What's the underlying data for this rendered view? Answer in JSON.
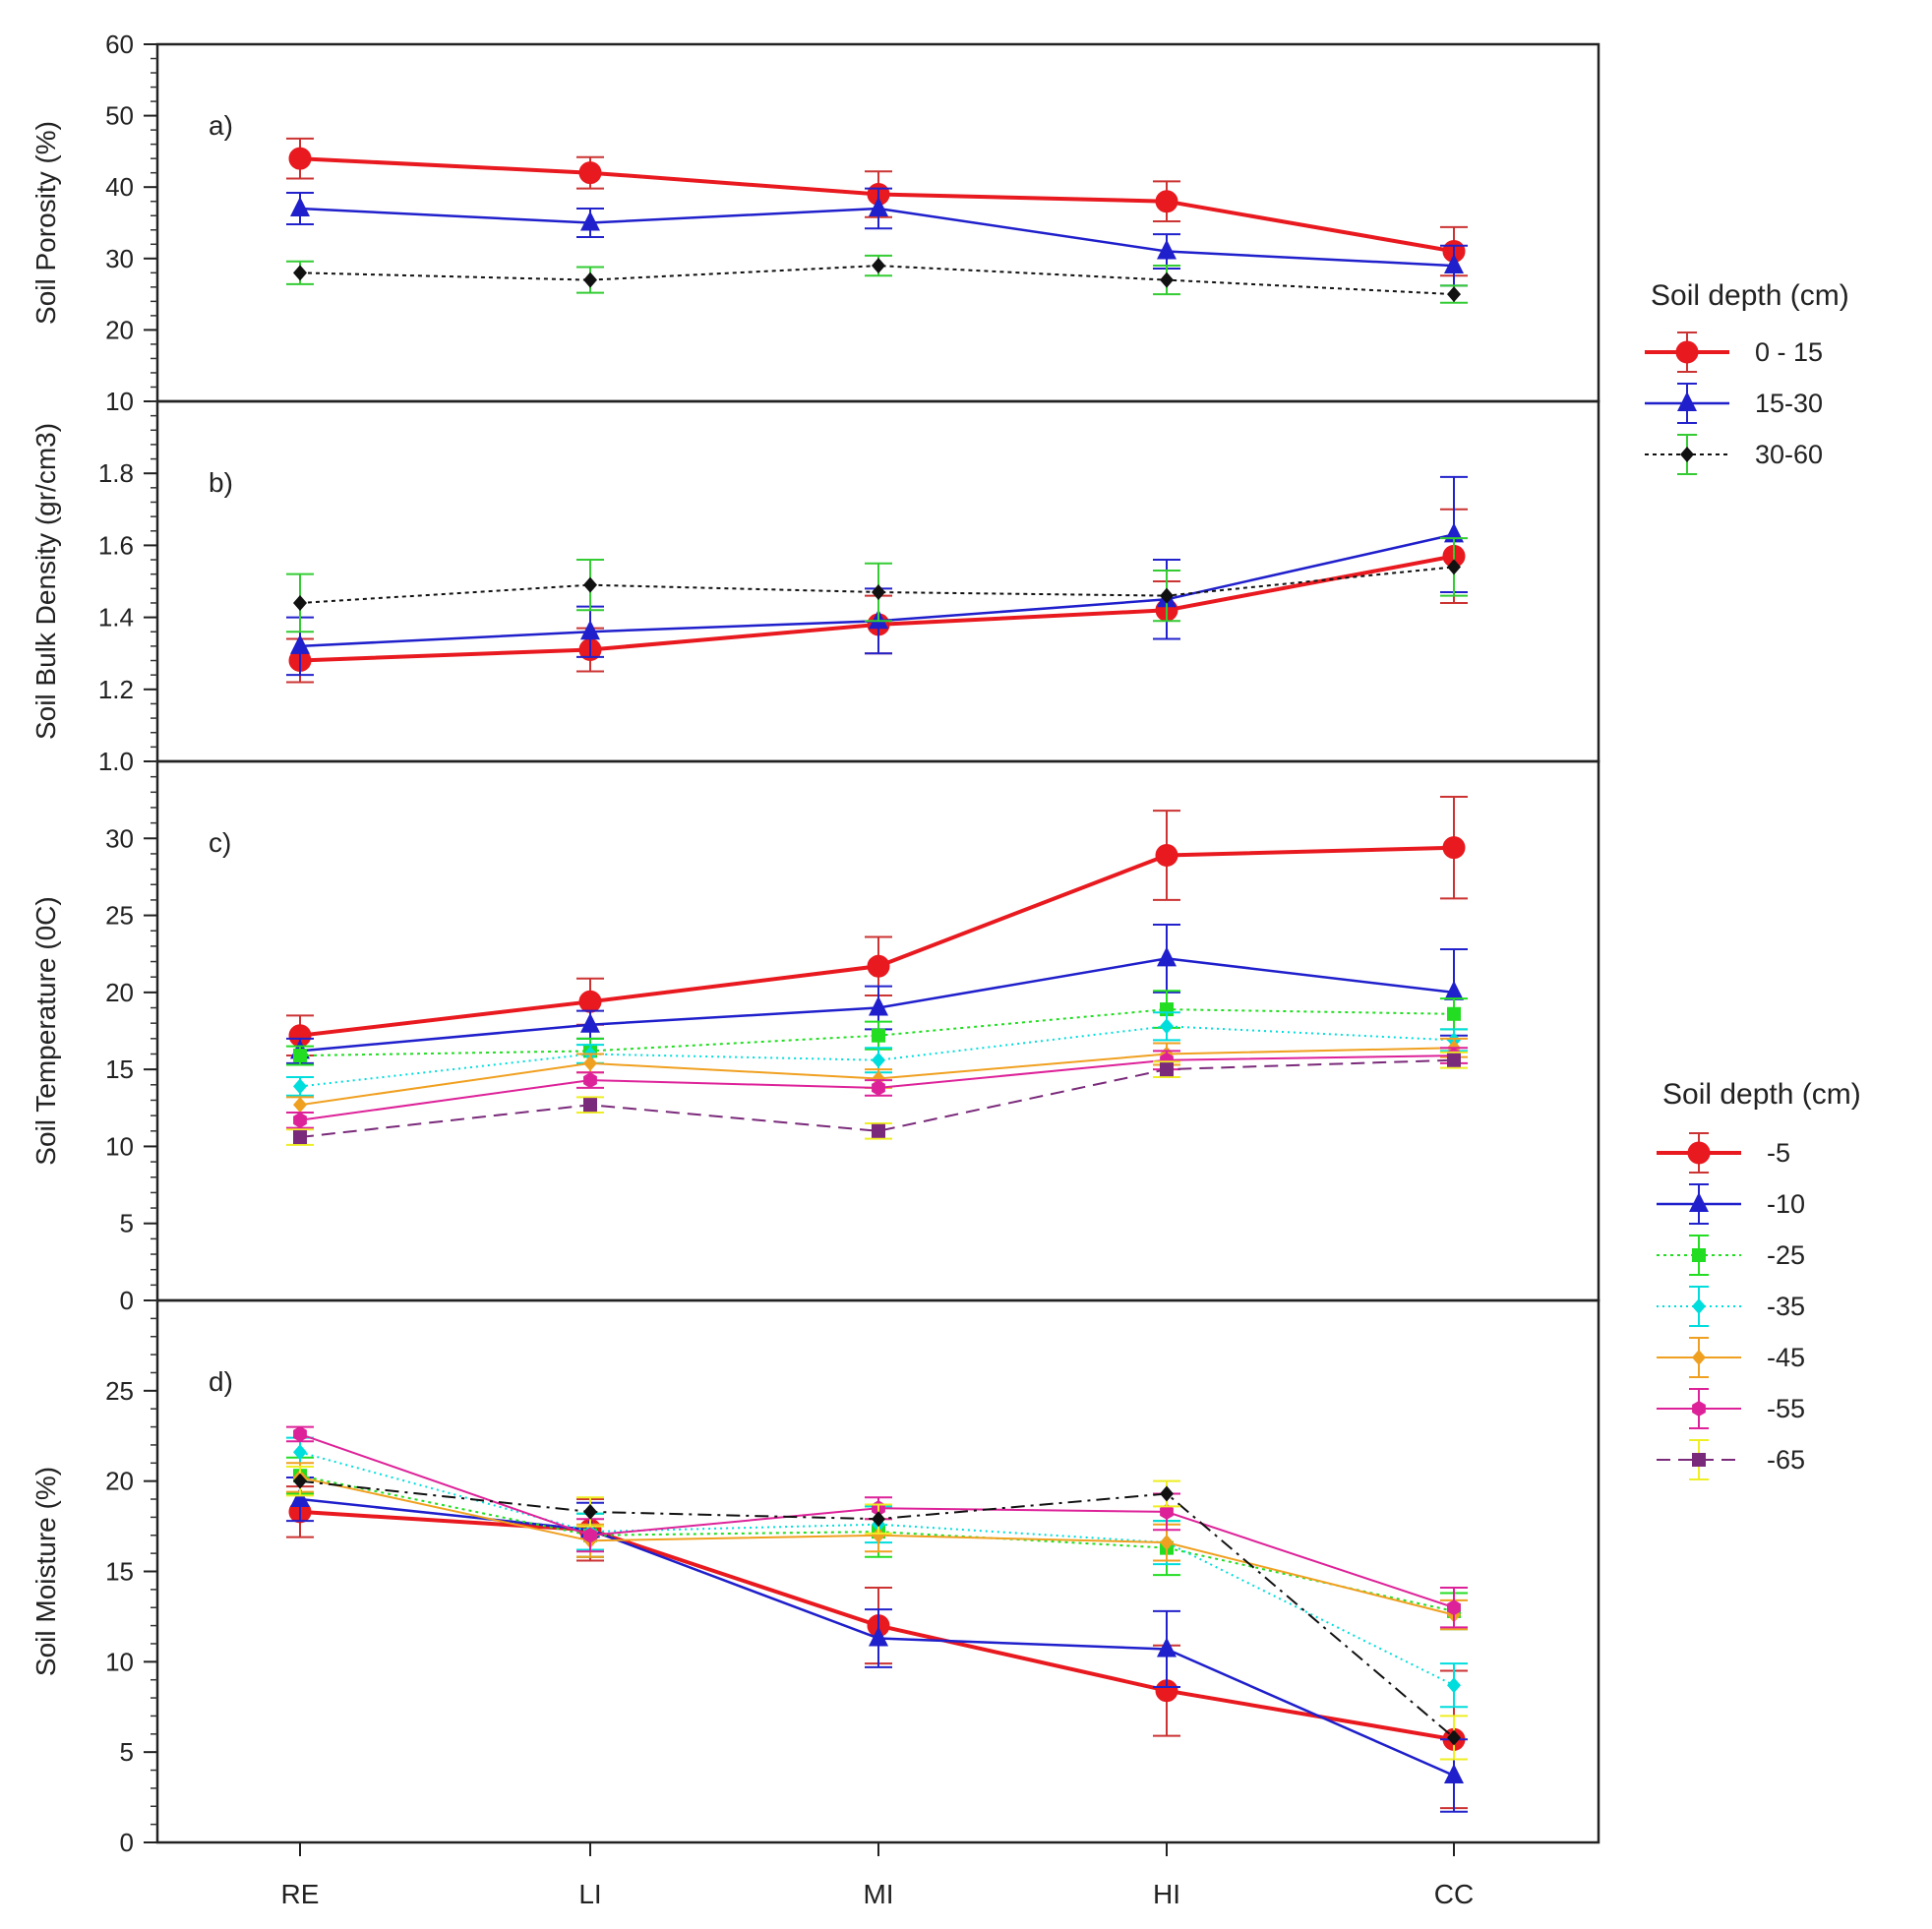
{
  "chart_data": {
    "type": "line",
    "categories": [
      "RE",
      "LI",
      "MI",
      "HI",
      "CC"
    ],
    "panels": [
      {
        "id": "a",
        "label": "a)",
        "ylabel": "Soil Porosity (%)",
        "ylim": [
          10,
          60
        ],
        "yticks": [
          10,
          20,
          30,
          40,
          50,
          60
        ],
        "tick_labels": [
          "10",
          "20",
          "30",
          "40",
          "50",
          "60"
        ],
        "series": [
          {
            "name": "0 - 15",
            "color": "#e8191f",
            "marker": "circle",
            "dash": "",
            "width": 4,
            "values": [
              44,
              42,
              39,
              38,
              31
            ],
            "errors": [
              2.8,
              2.2,
              3.2,
              2.8,
              3.4
            ],
            "error_color": "#cc3333"
          },
          {
            "name": "15-30",
            "color": "#1f1fcc",
            "marker": "triangle",
            "dash": "",
            "width": 2.5,
            "values": [
              37,
              35,
              37,
              31,
              29
            ],
            "errors": [
              2.2,
              2.0,
              2.8,
              2.4,
              2.8
            ],
            "error_color": "#2222cc"
          },
          {
            "name": "30-60",
            "color": "#111111",
            "marker": "diamond",
            "dash": "4,4",
            "width": 2,
            "values": [
              28,
              27,
              29,
              27,
              25
            ],
            "errors": [
              1.6,
              1.8,
              1.4,
              2.0,
              1.2
            ],
            "error_color": "#33cc33"
          }
        ]
      },
      {
        "id": "b",
        "label": "b)",
        "ylabel": "Soil Bulk Density (gr/cm3)",
        "ylim": [
          1.0,
          2.0
        ],
        "yticks": [
          1.0,
          1.2,
          1.4,
          1.6,
          1.8
        ],
        "tick_labels": [
          "1.0",
          "1.2",
          "1.4",
          "1.6",
          "1.8"
        ],
        "series": [
          {
            "name": "0 - 15",
            "color": "#e8191f",
            "marker": "circle",
            "dash": "",
            "width": 4,
            "values": [
              1.28,
              1.31,
              1.38,
              1.42,
              1.57
            ],
            "errors": [
              0.06,
              0.06,
              0.08,
              0.08,
              0.13
            ],
            "error_color": "#cc3333"
          },
          {
            "name": "15-30",
            "color": "#1f1fcc",
            "marker": "triangle",
            "dash": "",
            "width": 2.5,
            "values": [
              1.32,
              1.36,
              1.39,
              1.45,
              1.63
            ],
            "errors": [
              0.08,
              0.07,
              0.09,
              0.11,
              0.16
            ],
            "error_color": "#2222cc"
          },
          {
            "name": "30-60",
            "color": "#111111",
            "marker": "diamond",
            "dash": "4,4",
            "width": 2,
            "values": [
              1.44,
              1.49,
              1.47,
              1.46,
              1.54
            ],
            "errors": [
              0.08,
              0.07,
              0.08,
              0.07,
              0.08
            ],
            "error_color": "#33cc33"
          }
        ]
      },
      {
        "id": "c",
        "label": "c)",
        "ylabel": "Soil Temperature (0C)",
        "ylim": [
          0,
          35
        ],
        "yticks": [
          0,
          5,
          10,
          15,
          20,
          25,
          30
        ],
        "tick_labels": [
          "0",
          "5",
          "10",
          "15",
          "20",
          "25",
          "30"
        ],
        "series": [
          {
            "name": "-5",
            "color": "#e8191f",
            "marker": "circle",
            "dash": "",
            "width": 4,
            "values": [
              17.2,
              19.4,
              21.7,
              28.9,
              29.4
            ],
            "errors": [
              1.3,
              1.5,
              1.9,
              2.9,
              3.3
            ],
            "error_color": "#cc3333"
          },
          {
            "name": "-10",
            "color": "#1f1fcc",
            "marker": "triangle",
            "dash": "",
            "width": 2.5,
            "values": [
              16.2,
              17.9,
              19.0,
              22.2,
              20.0
            ],
            "errors": [
              0.8,
              0.9,
              1.4,
              2.2,
              2.8
            ],
            "error_color": "#2222cc"
          },
          {
            "name": "-25",
            "color": "#22dd22",
            "marker": "square",
            "dash": "3,4",
            "width": 2,
            "values": [
              15.9,
              16.2,
              17.2,
              18.9,
              18.6
            ],
            "errors": [
              0.6,
              0.8,
              0.9,
              1.2,
              1.0
            ],
            "error_color": "#22dd22"
          },
          {
            "name": "-35",
            "color": "#00dddd",
            "marker": "diamond",
            "dash": "2,4",
            "width": 2,
            "values": [
              13.9,
              16.0,
              15.6,
              17.8,
              16.9
            ],
            "errors": [
              0.6,
              0.6,
              0.8,
              0.9,
              0.7
            ],
            "error_color": "#00dddd"
          },
          {
            "name": "-45",
            "color": "#f0a020",
            "marker": "diamond",
            "dash": "",
            "width": 2,
            "values": [
              12.7,
              15.4,
              14.4,
              16.0,
              16.4
            ],
            "errors": [
              0.5,
              0.6,
              0.6,
              0.7,
              0.6
            ],
            "error_color": "#f0a020"
          },
          {
            "name": "-55",
            "color": "#dd2299",
            "marker": "hexagon",
            "dash": "",
            "width": 2,
            "values": [
              11.7,
              14.3,
              13.8,
              15.6,
              15.9
            ],
            "errors": [
              0.5,
              0.5,
              0.5,
              0.6,
              0.5
            ],
            "error_color": "#dd2299"
          },
          {
            "name": "-65",
            "color": "#7a2a7a",
            "marker": "square",
            "dash": "14,8",
            "width": 2,
            "values": [
              10.6,
              12.7,
              11.0,
              15.0,
              15.6
            ],
            "errors": [
              0.5,
              0.5,
              0.5,
              0.5,
              0.5
            ],
            "error_color": "#eeee22"
          }
        ]
      },
      {
        "id": "d",
        "label": "d)",
        "ylabel": "Soil Moisture (%)",
        "ylim": [
          0,
          30
        ],
        "yticks": [
          0,
          5,
          10,
          15,
          20,
          25
        ],
        "tick_labels": [
          "0",
          "5",
          "10",
          "15",
          "20",
          "25"
        ],
        "series": [
          {
            "name": "-5",
            "color": "#e8191f",
            "marker": "circle",
            "dash": "",
            "width": 4,
            "values": [
              18.3,
              17.3,
              12.0,
              8.4,
              5.7
            ],
            "errors": [
              1.4,
              1.7,
              2.1,
              2.5,
              3.8
            ],
            "error_color": "#cc3333"
          },
          {
            "name": "-10",
            "color": "#1f1fcc",
            "marker": "triangle",
            "dash": "",
            "width": 2.5,
            "values": [
              19.0,
              17.3,
              11.3,
              10.7,
              3.7
            ],
            "errors": [
              1.2,
              1.5,
              1.6,
              2.1,
              2.0
            ],
            "error_color": "#2222cc"
          },
          {
            "name": "-25",
            "color": "#22dd22",
            "marker": "square",
            "dash": "3,4",
            "width": 2,
            "values": [
              20.3,
              17.0,
              17.2,
              16.3,
              12.8
            ],
            "errors": [
              1.0,
              1.2,
              1.4,
              1.5,
              1.0
            ],
            "error_color": "#22dd22"
          },
          {
            "name": "-35",
            "color": "#00dddd",
            "marker": "diamond",
            "dash": "2,4",
            "width": 2,
            "values": [
              21.6,
              17.2,
              17.6,
              16.6,
              8.7
            ],
            "errors": [
              0.8,
              1.0,
              1.0,
              1.2,
              1.2
            ],
            "error_color": "#00dddd"
          },
          {
            "name": "-45",
            "color": "#f0a020",
            "marker": "diamond",
            "dash": "",
            "width": 2,
            "values": [
              20.2,
              16.7,
              17.0,
              16.6,
              12.6
            ],
            "errors": [
              0.8,
              0.9,
              0.9,
              1.0,
              0.8
            ],
            "error_color": "#f0a020"
          },
          {
            "name": "-55",
            "color": "#dd2299",
            "marker": "hexagon",
            "dash": "",
            "width": 2,
            "values": [
              22.6,
              17.0,
              18.5,
              18.3,
              13.0
            ],
            "errors": [
              0.4,
              0.9,
              0.6,
              1.0,
              1.1
            ],
            "error_color": "#dd2299"
          },
          {
            "name": "-65",
            "color": "#111111",
            "marker": "diamond",
            "dash": "14,6,3,6",
            "width": 2,
            "values": [
              20.0,
              18.3,
              17.9,
              19.3,
              5.8
            ],
            "errors": [
              0.8,
              0.8,
              0.8,
              0.7,
              1.2
            ],
            "error_color": "#eeee22"
          }
        ]
      }
    ],
    "legends": [
      {
        "title": "Soil depth (cm)",
        "panels": [
          "a",
          "b"
        ],
        "entries": [
          "0 - 15",
          "15-30",
          "30-60"
        ]
      },
      {
        "title": "Soil depth (cm)",
        "panels": [
          "c",
          "d"
        ],
        "entries": [
          "-5",
          "-10",
          "-25",
          "-35",
          "-45",
          "-55",
          "-65"
        ]
      }
    ]
  }
}
